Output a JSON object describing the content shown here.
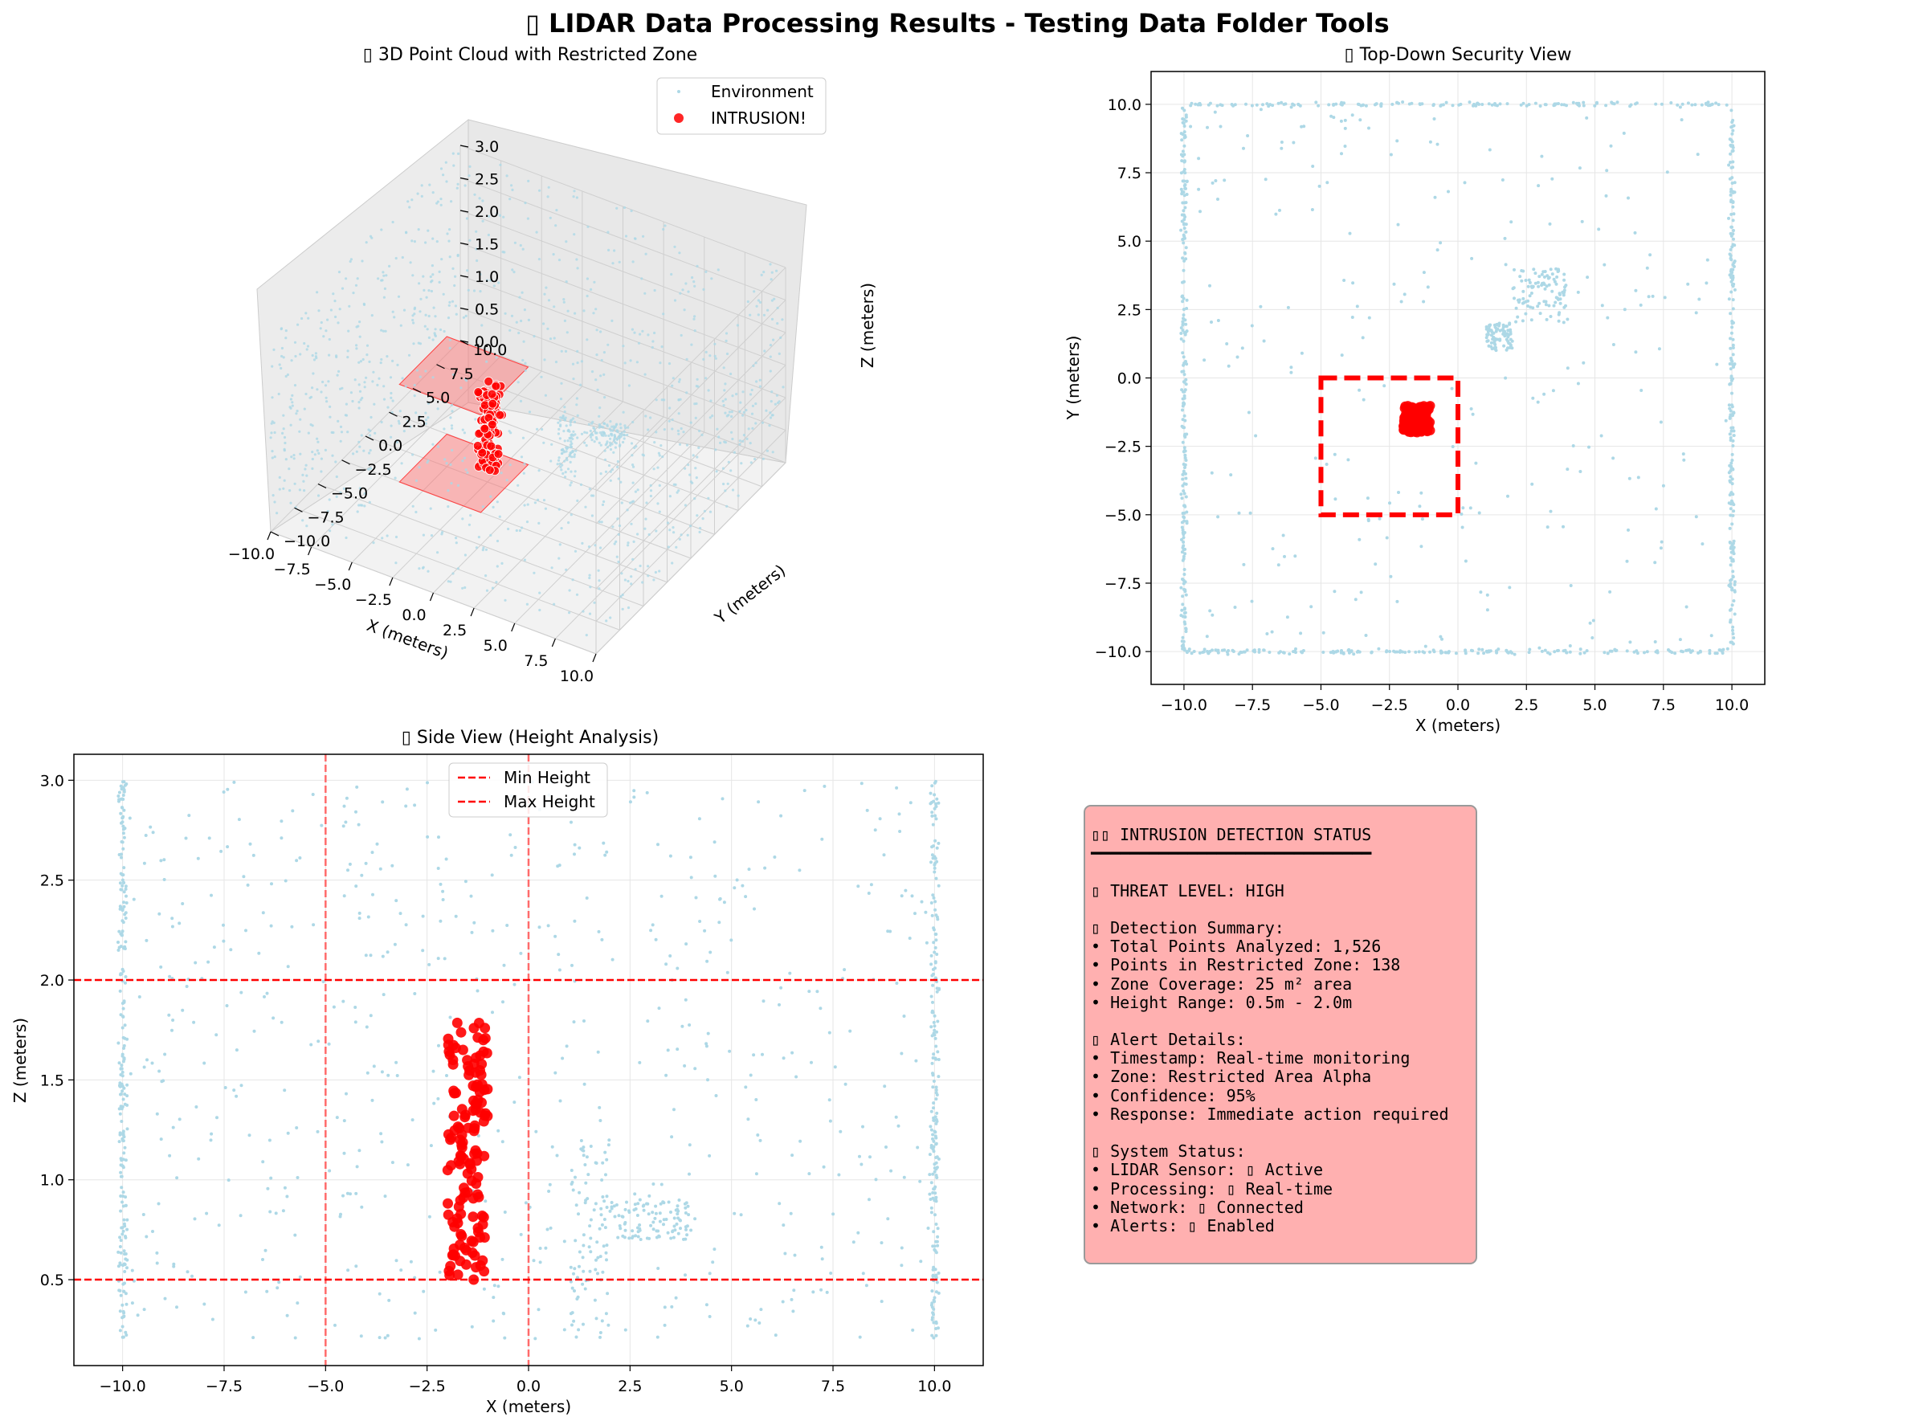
{
  "figure": {
    "suptitle": "▯ LIDAR Data Processing Results - Testing Data Folder Tools"
  },
  "colors": {
    "environment": "#add8e6",
    "intrusion": "#ff0000",
    "zone_line": "#ff0000",
    "panel_bg": "#ffb0b0",
    "grid": "#e6e6e6"
  },
  "chart_data": [
    {
      "id": "point-cloud-3d",
      "type": "scatter",
      "projection": "3d",
      "title": "▯ 3D Point Cloud with Restricted Zone",
      "xlabel": "X (meters)",
      "ylabel": "Y (meters)",
      "zlabel": "Z (meters)",
      "xlim": [
        -10,
        10
      ],
      "ylim": [
        -10,
        10
      ],
      "zlim": [
        0,
        3
      ],
      "xticks": [
        "−10.0",
        "−7.5",
        "−5.0",
        "−2.5",
        "0.0",
        "2.5",
        "5.0",
        "7.5",
        "10.0"
      ],
      "yticks": [
        "−10.0",
        "−7.5",
        "−5.0",
        "−2.5",
        "0.0",
        "2.5",
        "5.0",
        "7.5",
        "10.0"
      ],
      "zticks": [
        "0.0",
        "0.5",
        "1.0",
        "1.5",
        "2.0",
        "2.5",
        "3.0"
      ],
      "legend_position": "upper-right",
      "series": [
        {
          "name": "Environment",
          "color": "#add8e6"
        },
        {
          "name": "INTRUSION!",
          "color": "#ff0000"
        }
      ],
      "restricted_zone": {
        "x": [
          -5,
          0
        ],
        "y": [
          -5,
          0
        ],
        "z_planes": [
          0.5,
          2.0
        ]
      },
      "grid": true
    },
    {
      "id": "top-down-view",
      "type": "scatter",
      "title": "▯ Top-Down Security View",
      "xlabel": "X (meters)",
      "ylabel": "Y (meters)",
      "xlim": [
        -11.2,
        11.2
      ],
      "ylim": [
        -11.2,
        11.2
      ],
      "xticks": [
        -10,
        -7.5,
        -5,
        -2.5,
        0,
        2.5,
        5,
        7.5,
        10
      ],
      "yticks": [
        -10,
        -7.5,
        -5,
        -2.5,
        0,
        2.5,
        5,
        7.5,
        10
      ],
      "tick_labels": [
        "−10.0",
        "−7.5",
        "−5.0",
        "−2.5",
        "0.0",
        "2.5",
        "5.0",
        "7.5",
        "10.0"
      ],
      "restricted_zone": {
        "x": [
          -5,
          0
        ],
        "y": [
          -5,
          0
        ]
      },
      "clusters": [
        {
          "series": "environment",
          "x": [
            1.0,
            2.0
          ],
          "y": [
            1.0,
            2.0
          ]
        },
        {
          "series": "environment",
          "x": [
            2.0,
            4.0
          ],
          "y": [
            2.0,
            4.0
          ]
        },
        {
          "series": "intrusion",
          "x": [
            -2.0,
            -1.0
          ],
          "y": [
            -2.0,
            -1.0
          ]
        }
      ],
      "walls": {
        "x": [
          -10,
          10
        ],
        "y": [
          -10,
          10
        ]
      },
      "grid": true
    },
    {
      "id": "side-view",
      "type": "scatter",
      "title": "▯ Side View (Height Analysis)",
      "xlabel": "X (meters)",
      "ylabel": "Z (meters)",
      "xlim": [
        -11.2,
        11.2
      ],
      "ylim": [
        0.07,
        3.13
      ],
      "xticks": [
        -10,
        -7.5,
        -5,
        -2.5,
        0,
        2.5,
        5,
        7.5,
        10
      ],
      "xtick_labels": [
        "−10.0",
        "−7.5",
        "−5.0",
        "−2.5",
        "0.0",
        "2.5",
        "5.0",
        "7.5",
        "10.0"
      ],
      "yticks": [
        0.5,
        1.0,
        1.5,
        2.0,
        2.5,
        3.0
      ],
      "ytick_labels": [
        "0.5",
        "1.0",
        "1.5",
        "2.0",
        "2.5",
        "3.0"
      ],
      "hlines": [
        {
          "name": "Min Height",
          "y": 0.5,
          "color": "#ff0000"
        },
        {
          "name": "Max Height",
          "y": 2.0,
          "color": "#ff0000"
        }
      ],
      "vlines": [
        -5,
        0
      ],
      "legend_position": "upper-center",
      "intrusion": {
        "x": [
          -2.0,
          -1.0
        ],
        "z": [
          0.5,
          1.8
        ]
      },
      "grid": true
    }
  ],
  "status_panel": {
    "lines": [
      "▯▯ INTRUSION DETECTION STATUS",
      "━━━━━━━━━━━━━━━━━━━━━━━━━━━━━",
      "",
      "▯ THREAT LEVEL: HIGH",
      "",
      "▯ Detection Summary:",
      "• Total Points Analyzed: 1,526",
      "• Points in Restricted Zone: 138",
      "• Zone Coverage: 25 m² area",
      "• Height Range: 0.5m - 2.0m",
      "",
      "▯ Alert Details:",
      "• Timestamp: Real-time monitoring",
      "• Zone: Restricted Area Alpha",
      "• Confidence: 95%",
      "• Response: Immediate action required",
      "",
      "▯ System Status:",
      "• LIDAR Sensor: ▯ Active",
      "• Processing: ▯ Real-time",
      "• Network: ▯ Connected",
      "• Alerts: ▯ Enabled"
    ]
  }
}
